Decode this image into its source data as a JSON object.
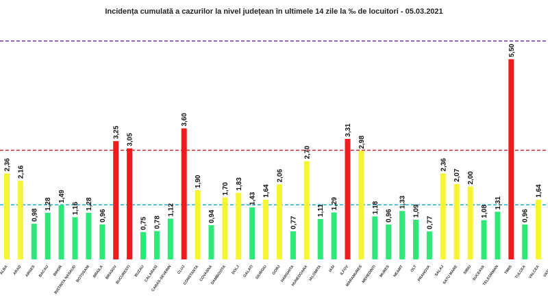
{
  "chart_data": {
    "type": "bar",
    "title": "Incidența cumulată a cazurilor la nivel județean în ultimele 14 zile la ‰ de locuitori - 05.03.2021",
    "xlabel": "",
    "ylabel": "",
    "ylim": [
      0,
      6
    ],
    "grid": false,
    "categories": [
      "ALBA",
      "ARAD",
      "ARGES",
      "BACAU",
      "BIHOR",
      "BISTRITA NASAUD",
      "BOTOSANI",
      "BRAILA",
      "BRASOV",
      "BUCURESTI",
      "BUZAU",
      "CALARASI",
      "CARAS-SEVERIN",
      "CLUJ",
      "CONSTANTA",
      "COVASNA",
      "DAMBOVITA",
      "DOLJ",
      "GALATI",
      "GIURGIU",
      "GORJ",
      "HARGHITA",
      "HUNEDOARA",
      "IALOMITA",
      "IASI",
      "ILFOV",
      "MARAMURES",
      "MEHEDINTI",
      "MURES",
      "NEAMT",
      "OLT",
      "PRAHOVA",
      "SALAJ",
      "SATU MARE",
      "SIBIU",
      "SUCEAVA",
      "TELEORMAN",
      "TIMIS",
      "TULCEA",
      "VALCEA",
      "VASLUI"
    ],
    "values": [
      2.36,
      2.16,
      0.98,
      1.28,
      1.49,
      1.16,
      1.28,
      0.96,
      3.25,
      3.05,
      0.75,
      0.78,
      1.12,
      3.6,
      1.9,
      0.94,
      1.7,
      1.83,
      1.43,
      1.64,
      2.06,
      0.77,
      2.7,
      1.11,
      1.29,
      3.31,
      2.98,
      1.18,
      0.96,
      1.33,
      1.09,
      0.77,
      2.36,
      2.07,
      2.0,
      1.08,
      1.31,
      5.5,
      0.96,
      1.64,
      null
    ],
    "value_labels": [
      "2,36",
      "2,16",
      "0,98",
      "1,28",
      "1,49",
      "1,16",
      "1,28",
      "0,96",
      "3,25",
      "3,05",
      "0,75",
      "0,78",
      "1,12",
      "3,60",
      "1,90",
      "0,94",
      "1,70",
      "1,83",
      "1,43",
      "1,64",
      "2,06",
      "0,77",
      "2,70",
      "1,11",
      "1,29",
      "3,31",
      "2,98",
      "1,18",
      "0,96",
      "1,33",
      "1,09",
      "0,77",
      "2,36",
      "2,07",
      "2,00",
      "1,08",
      "1,31",
      "5,50",
      "0,96",
      "1,64",
      ""
    ],
    "colors": {
      "green": "#2ee87a",
      "yellow": "#f5f531",
      "red": "#ee1c1c"
    },
    "thresholds": [
      {
        "value": 1.5,
        "color": "#2aa8c8",
        "style": "dashed"
      },
      {
        "value": 3.0,
        "color": "#c0282c",
        "style": "dashed"
      },
      {
        "value": 6.0,
        "color": "#7030a0",
        "style": "dashed"
      }
    ]
  }
}
